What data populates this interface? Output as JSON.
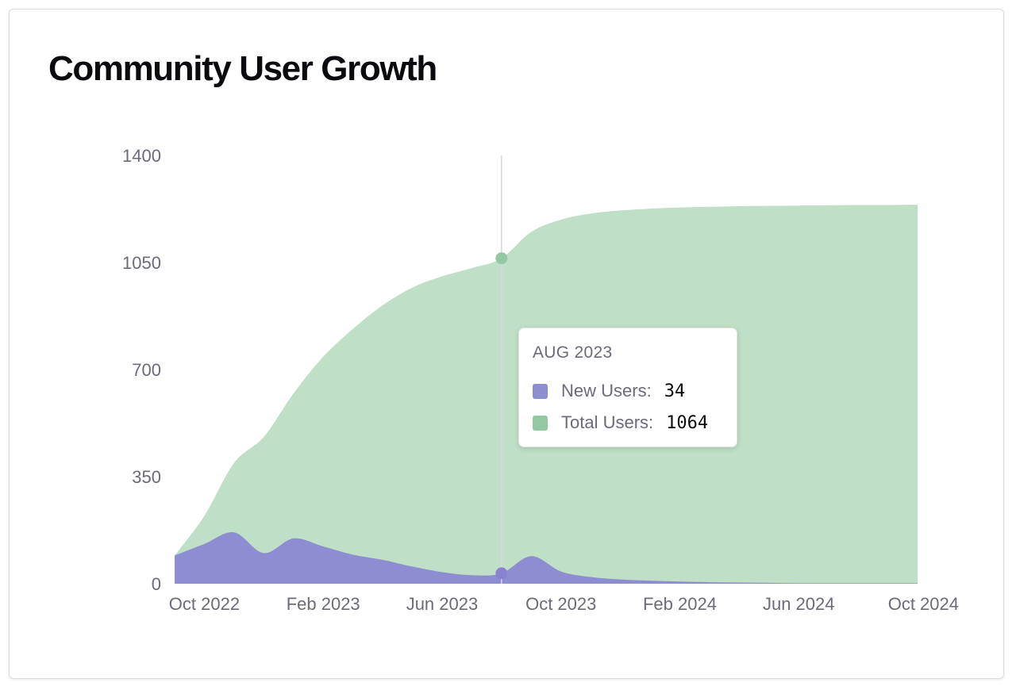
{
  "title": "Community User Growth",
  "colors": {
    "new_users": "#8d8dd1",
    "total_users": "#bfdfc6",
    "total_users_dot": "#93c9a2",
    "new_users_dot": "#8a82d0",
    "crosshair": "#d8d8dd"
  },
  "tooltip": {
    "title": "AUG 2023",
    "rows": [
      {
        "label": "New Users:",
        "value": "34",
        "color": "#8d8dd1"
      },
      {
        "label": "Total Users:",
        "value": "1064",
        "color": "#93c9a2"
      }
    ]
  },
  "chart_data": {
    "type": "area",
    "title": "Community User Growth",
    "x": [
      "Sep 2022",
      "Oct 2022",
      "Nov 2022",
      "Dec 2022",
      "Jan 2023",
      "Feb 2023",
      "Mar 2023",
      "Apr 2023",
      "May 2023",
      "Jun 2023",
      "Jul 2023",
      "Aug 2023",
      "Sep 2023",
      "Oct 2023",
      "Nov 2023",
      "Dec 2023",
      "Jan 2024",
      "Feb 2024",
      "Mar 2024",
      "Apr 2024",
      "May 2024",
      "Jun 2024",
      "Jul 2024",
      "Aug 2024",
      "Sep 2024",
      "Oct 2024"
    ],
    "series": [
      {
        "name": "Total Users",
        "values": [
          92,
          222,
          395,
          480,
          622,
          742,
          833,
          910,
          968,
          1005,
          1032,
          1064,
          1150,
          1190,
          1210,
          1220,
          1226,
          1230,
          1232,
          1234,
          1235,
          1236,
          1237,
          1238,
          1238,
          1239
        ]
      },
      {
        "name": "New Users",
        "values": [
          92,
          130,
          168,
          100,
          148,
          122,
          95,
          78,
          56,
          38,
          28,
          34,
          90,
          40,
          22,
          14,
          10,
          7,
          5,
          4,
          3,
          2,
          2,
          2,
          2,
          2
        ]
      }
    ],
    "x_tick_labels": [
      "Oct 2022",
      "Feb 2023",
      "Jun 2023",
      "Oct 2023",
      "Feb 2024",
      "Jun 2024",
      "Oct 2024"
    ],
    "y_ticks": [
      0,
      350,
      700,
      1050,
      1400
    ],
    "ylim": [
      0,
      1400
    ],
    "highlight": {
      "x": "Aug 2023",
      "New Users": 34,
      "Total Users": 1064
    },
    "grid": false,
    "legend": "none"
  }
}
